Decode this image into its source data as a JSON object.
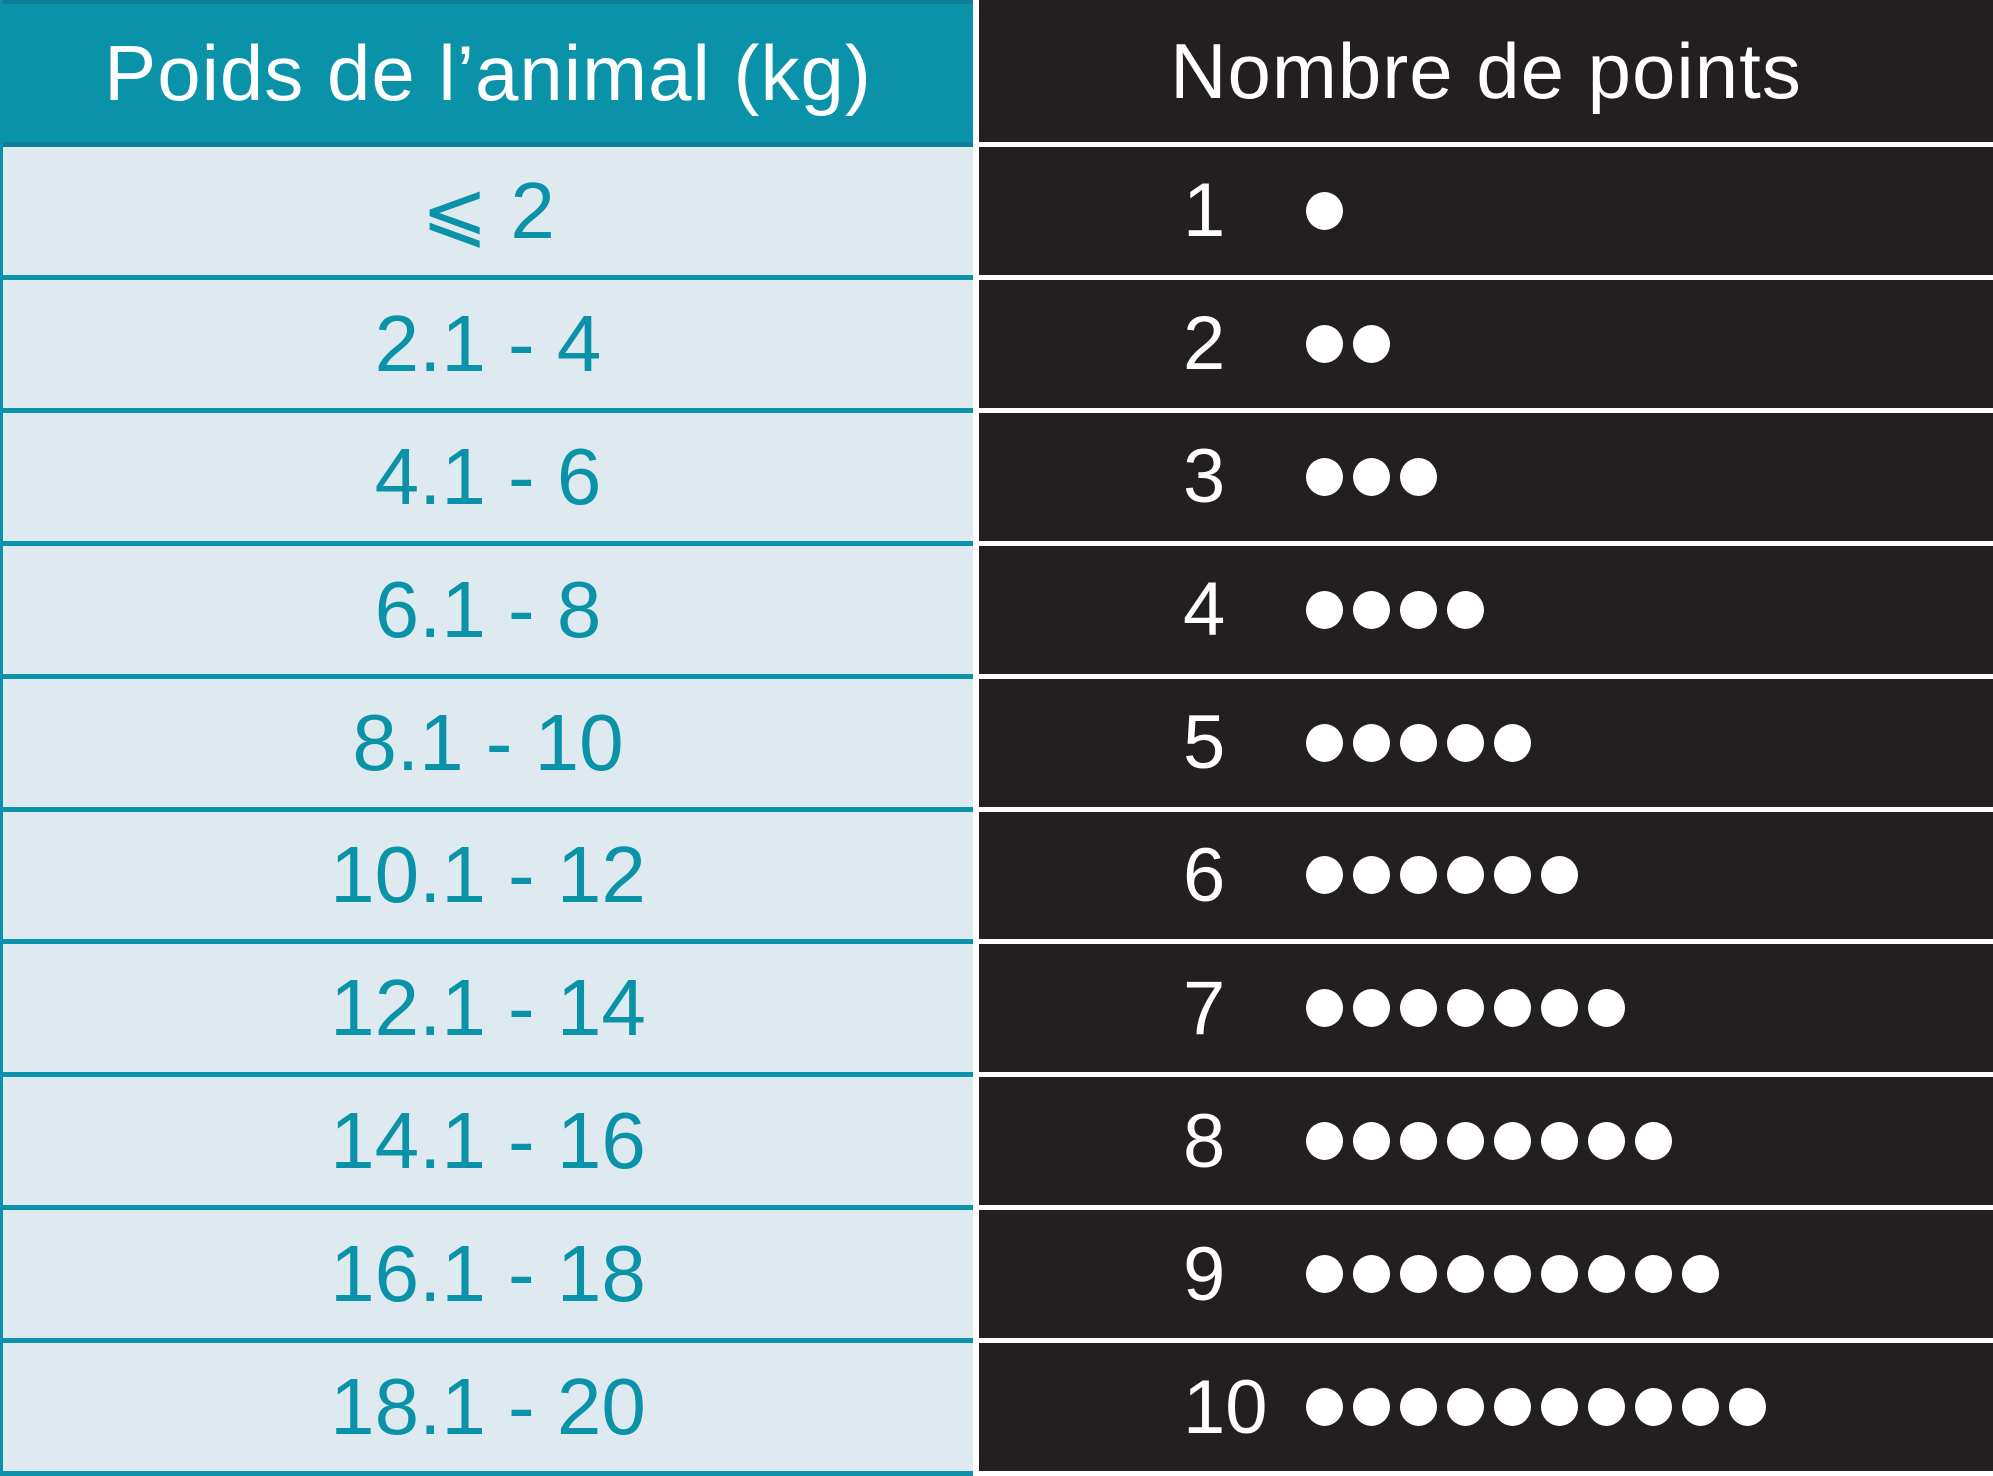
{
  "colors": {
    "teal": "#0a92a9",
    "teal_dark": "#0d7e95",
    "light_blue": "#dfeaf0",
    "dark": "#231f20",
    "white": "#ffffff"
  },
  "table": {
    "columns": [
      {
        "header": "Poids de l’animal (kg)"
      },
      {
        "header": "Nombre de points"
      }
    ],
    "rows": [
      {
        "weight": "⩽ 2",
        "points": 1
      },
      {
        "weight": "2.1 - 4",
        "points": 2
      },
      {
        "weight": "4.1 - 6",
        "points": 3
      },
      {
        "weight": "6.1 - 8",
        "points": 4
      },
      {
        "weight": "8.1 - 10",
        "points": 5
      },
      {
        "weight": "10.1 - 12",
        "points": 6
      },
      {
        "weight": "12.1 - 14",
        "points": 7
      },
      {
        "weight": "14.1 - 16",
        "points": 8
      },
      {
        "weight": "16.1 - 18",
        "points": 9
      },
      {
        "weight": "18.1 - 20",
        "points": 10
      }
    ]
  },
  "chart_data": {
    "type": "table",
    "title": "",
    "columns": [
      "Poids de l’animal (kg)",
      "Nombre de points"
    ],
    "rows": [
      [
        "⩽ 2",
        1
      ],
      [
        "2.1 - 4",
        2
      ],
      [
        "4.1 - 6",
        3
      ],
      [
        "6.1 - 8",
        4
      ],
      [
        "8.1 - 10",
        5
      ],
      [
        "10.1 - 12",
        6
      ],
      [
        "12.1 - 14",
        7
      ],
      [
        "14.1 - 16",
        8
      ],
      [
        "16.1 - 18",
        9
      ],
      [
        "18.1 - 20",
        10
      ]
    ],
    "notes": "points column shows the count as a numeral followed by that many white dots (pictogram)"
  }
}
